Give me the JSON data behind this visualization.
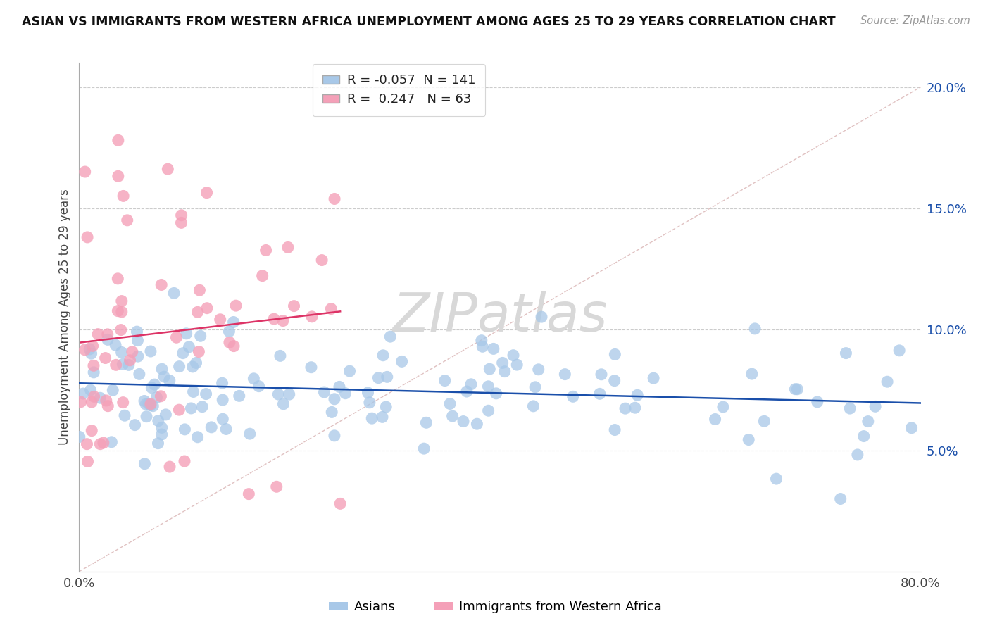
{
  "title": "ASIAN VS IMMIGRANTS FROM WESTERN AFRICA UNEMPLOYMENT AMONG AGES 25 TO 29 YEARS CORRELATION CHART",
  "source": "Source: ZipAtlas.com",
  "ylabel": "Unemployment Among Ages 25 to 29 years",
  "xlim": [
    0.0,
    80.0
  ],
  "ylim": [
    0.0,
    21.0
  ],
  "legend_R_asian": "-0.057",
  "legend_N_asian": "141",
  "legend_R_waf": "0.247",
  "legend_N_waf": "63",
  "asian_color": "#a8c8e8",
  "waf_color": "#f4a0b8",
  "trend_asian_color": "#1a4faa",
  "trend_waf_color": "#dd3366",
  "diag_color": "#ddbbbb",
  "grid_color": "#cccccc",
  "ytick_vals": [
    5.0,
    10.0,
    15.0,
    20.0
  ],
  "ytick_labels": [
    "5.0%",
    "10.0%",
    "15.0%",
    "20.0%"
  ],
  "xtick_labels": [
    "0.0%",
    "80.0%"
  ],
  "watermark_text": "ZIPatlas",
  "legend_label_asian": "Asians",
  "legend_label_waf": "Immigrants from Western Africa"
}
